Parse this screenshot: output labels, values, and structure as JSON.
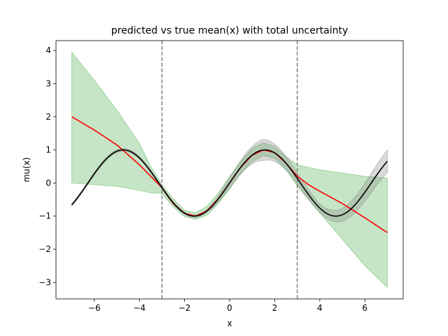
{
  "chart_data": {
    "type": "line",
    "title": "predicted vs true mean(x) with total uncertainty",
    "xlabel": "x",
    "ylabel": "mu(x)",
    "xlim": [
      -7.7,
      7.7
    ],
    "ylim": [
      -3.5,
      4.3
    ],
    "xticks": [
      -6,
      -4,
      -2,
      0,
      2,
      4,
      6
    ],
    "yticks": [
      -3,
      -2,
      -1,
      0,
      1,
      2,
      3,
      4
    ],
    "xtick_labels": [
      "−6",
      "−4",
      "−2",
      "0",
      "2",
      "4",
      "6"
    ],
    "ytick_labels": [
      "−3",
      "−2",
      "−1",
      "0",
      "1",
      "2",
      "3",
      "4"
    ],
    "vlines": [
      -3,
      3
    ],
    "grid": false,
    "colors": {
      "predicted": "#ff0000",
      "true": "#000000",
      "band_total": "#2ca02c",
      "band_true": "#808080",
      "vline": "#808080"
    },
    "series": [
      {
        "name": "true mean",
        "function": "sin(x)",
        "x_range": [
          -7,
          7
        ]
      },
      {
        "name": "predicted mean",
        "x": [
          -7,
          -6,
          -5,
          -4,
          -3,
          -2.5,
          -2,
          -1.5,
          -1,
          -0.5,
          0,
          0.5,
          1,
          1.5,
          2,
          2.5,
          3,
          3.5,
          4,
          5,
          6,
          7
        ],
        "values": [
          2.0,
          1.6,
          1.15,
          0.55,
          -0.14,
          -0.62,
          -0.92,
          -1.0,
          -0.84,
          -0.48,
          0.0,
          0.48,
          0.84,
          1.0,
          0.92,
          0.6,
          0.2,
          -0.05,
          -0.25,
          -0.62,
          -1.05,
          -1.5
        ]
      }
    ],
    "bands": [
      {
        "name": "total uncertainty",
        "x": [
          -7,
          -6,
          -5,
          -4,
          -3.5,
          -3,
          -2.5,
          -2,
          -1.5,
          -1,
          -0.5,
          0,
          0.5,
          1,
          1.5,
          2,
          2.5,
          3,
          4,
          5,
          6,
          7
        ],
        "upper": [
          3.95,
          3.1,
          2.2,
          1.2,
          0.5,
          -0.05,
          -0.48,
          -0.83,
          -0.9,
          -0.7,
          -0.3,
          0.2,
          0.65,
          1.05,
          1.22,
          1.1,
          0.8,
          0.55,
          0.4,
          0.3,
          0.2,
          0.15
        ],
        "lower": [
          0.0,
          -0.05,
          -0.1,
          -0.22,
          -0.3,
          -0.32,
          -0.72,
          -1.02,
          -1.1,
          -0.97,
          -0.62,
          -0.18,
          0.3,
          0.65,
          0.82,
          0.75,
          0.42,
          -0.1,
          -0.9,
          -1.7,
          -2.5,
          -3.15
        ]
      },
      {
        "name": "true std",
        "x_range": [
          -7,
          7
        ],
        "std_profile": "0.04 + 0.28*max(0, 1 - |x - 1.5|/2.5) + 0.3*max(0, (x - 2.8)/4.2)"
      }
    ]
  }
}
